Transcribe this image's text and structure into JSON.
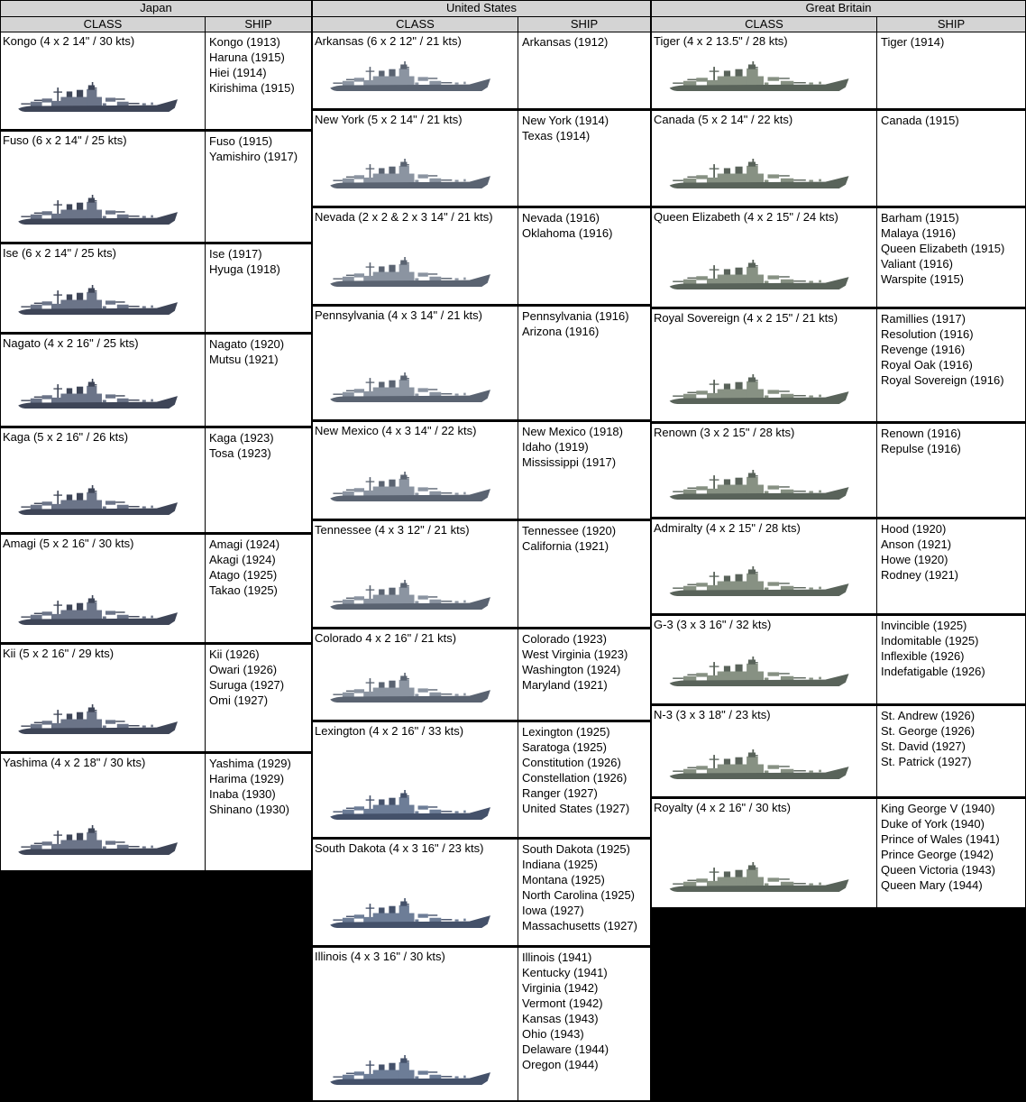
{
  "palettes": {
    "japan": {
      "dark": "#3e4557",
      "mid": "#6b7488"
    },
    "us_early": {
      "dark": "#5a6371",
      "mid": "#8b94a1"
    },
    "us_late": {
      "dark": "#44516a",
      "mid": "#6d7d97"
    },
    "gb": {
      "dark": "#59635a",
      "mid": "#879183"
    }
  },
  "colors": {
    "page_background": "#000000",
    "table_background": "#ffffff",
    "header_background": "#d4d4d4",
    "border": "#000000"
  },
  "tables": [
    {
      "country": "Japan",
      "class_header": "CLASS",
      "ship_header": "SHIP",
      "rows": [
        {
          "class_label": "Kongo (4 x 2 14\" / 30 kts)",
          "palette": "japan",
          "ships": [
            "Kongo (1913)",
            "Haruna (1915)",
            "Hiei (1914)",
            "Kirishima (1915)"
          ]
        },
        {
          "class_label": "Fuso (6 x 2 14\" / 25 kts)",
          "palette": "japan",
          "ships": [
            "Fuso (1915)",
            "Yamishiro (1917)"
          ]
        },
        {
          "class_label": "Ise (6 x 2 14\" / 25 kts)",
          "palette": "japan",
          "ships": [
            "Ise (1917)",
            "Hyuga (1918)"
          ]
        },
        {
          "class_label": "Nagato (4 x 2 16\" / 25 kts)",
          "palette": "japan",
          "ships": [
            "Nagato (1920)",
            "Mutsu (1921)"
          ]
        },
        {
          "class_label": "Kaga (5 x 2 16\" / 26 kts)",
          "palette": "japan",
          "ships": [
            "Kaga (1923)",
            "Tosa (1923)"
          ]
        },
        {
          "class_label": "Amagi (5 x 2 16\" / 30 kts)",
          "palette": "japan",
          "ships": [
            "Amagi (1924)",
            "Akagi (1924)",
            "Atago (1925)",
            "Takao (1925)"
          ]
        },
        {
          "class_label": "Kii (5 x 2 16\" / 29 kts)",
          "palette": "japan",
          "ships": [
            "Kii (1926)",
            "Owari (1926)",
            "Suruga (1927)",
            "Omi (1927)"
          ]
        },
        {
          "class_label": "Yashima (4 x 2 18\" / 30 kts)",
          "palette": "japan",
          "ships": [
            "Yashima (1929)",
            "Harima (1929)",
            "Inaba (1930)",
            "Shinano (1930)"
          ]
        }
      ]
    },
    {
      "country": "United States",
      "class_header": "CLASS",
      "ship_header": "SHIP",
      "rows": [
        {
          "class_label": "Arkansas (6 x 2 12\" / 21 kts)",
          "palette": "us_early",
          "ships": [
            "Arkansas (1912)"
          ]
        },
        {
          "class_label": "New York (5 x 2 14\" / 21 kts)",
          "palette": "us_early",
          "ships": [
            "New York (1914)",
            "Texas (1914)"
          ]
        },
        {
          "class_label": "Nevada (2 x 2 & 2 x 3 14\" / 21 kts)",
          "palette": "us_early",
          "ships": [
            "Nevada (1916)",
            "Oklahoma (1916)"
          ]
        },
        {
          "class_label": "Pennsylvania (4 x 3 14\" / 21 kts)",
          "palette": "us_early",
          "ships": [
            "Pennsylvania (1916)",
            "Arizona (1916)"
          ]
        },
        {
          "class_label": "New Mexico (4 x 3 14\" / 22 kts)",
          "palette": "us_early",
          "ships": [
            "New Mexico (1918)",
            "Idaho (1919)",
            "Mississippi (1917)"
          ]
        },
        {
          "class_label": "Tennessee (4 x 3 12\" / 21 kts)",
          "palette": "us_early",
          "ships": [
            "Tennessee (1920)",
            "California (1921)"
          ]
        },
        {
          "class_label": "Colorado 4 x 2 16\" / 21 kts)",
          "palette": "us_early",
          "ships": [
            "Colorado (1923)",
            "West Virginia (1923)",
            "Washington (1924)",
            "Maryland (1921)"
          ]
        },
        {
          "class_label": "Lexington (4 x 2 16\" / 33 kts)",
          "palette": "us_late",
          "ships": [
            "Lexington (1925)",
            "Saratoga (1925)",
            "Constitution (1926)",
            "Constellation (1926)",
            "Ranger (1927)",
            "United States (1927)"
          ]
        },
        {
          "class_label": "South Dakota (4 x 3 16\" / 23 kts)",
          "palette": "us_late",
          "ships": [
            "South Dakota (1925)",
            "Indiana (1925)",
            "Montana (1925)",
            "North Carolina (1925)",
            "Iowa (1927)",
            "Massachusetts (1927)"
          ]
        },
        {
          "class_label": "Illinois (4 x 3 16\" / 30 kts)",
          "palette": "us_late",
          "ships": [
            "Illinois (1941)",
            "Kentucky (1941)",
            "Virginia (1942)",
            "Vermont (1942)",
            "Kansas (1943)",
            "Ohio (1943)",
            "Delaware (1944)",
            "Oregon (1944)"
          ]
        }
      ]
    },
    {
      "country": "Great Britain",
      "class_header": "CLASS",
      "ship_header": "SHIP",
      "rows": [
        {
          "class_label": "Tiger (4 x 2 13.5\" / 28 kts)",
          "palette": "gb",
          "ships": [
            "Tiger (1914)"
          ]
        },
        {
          "class_label": "Canada (5 x 2 14\" / 22 kts)",
          "palette": "gb",
          "ships": [
            "Canada (1915)"
          ]
        },
        {
          "class_label": "Queen Elizabeth (4 x 2 15\" / 24 kts)",
          "palette": "gb",
          "ships": [
            "Barham (1915)",
            "Malaya (1916)",
            "Queen Elizabeth (1915)",
            "Valiant (1916)",
            "Warspite (1915)"
          ]
        },
        {
          "class_label": "Royal Sovereign (4 x 2 15\" / 21 kts)",
          "palette": "gb",
          "ships": [
            "Ramillies (1917)",
            "Resolution (1916)",
            "Revenge (1916)",
            "Royal Oak (1916)",
            "Royal Sovereign (1916)"
          ]
        },
        {
          "class_label": "Renown (3 x 2 15\" / 28 kts)",
          "palette": "gb",
          "ships": [
            "Renown (1916)",
            "Repulse (1916)"
          ]
        },
        {
          "class_label": "Admiralty (4 x 2 15\" / 28 kts)",
          "palette": "gb",
          "ships": [
            "Hood (1920)",
            "Anson (1921)",
            "Howe (1920)",
            "Rodney (1921)"
          ]
        },
        {
          "class_label": "G-3 (3 x 3 16\" / 32 kts)",
          "palette": "gb",
          "ships": [
            "Invincible (1925)",
            "Indomitable (1925)",
            "Inflexible (1926)",
            "Indefatigable (1926)"
          ]
        },
        {
          "class_label": "N-3 (3 x 3 18\" / 23 kts)",
          "palette": "gb",
          "ships": [
            "St. Andrew (1926)",
            "St. George (1926)",
            "St. David (1927)",
            "St. Patrick (1927)"
          ]
        },
        {
          "class_label": "Royalty (4 x 2 16\" / 30 kts)",
          "palette": "gb",
          "ships": [
            "King George V (1940)",
            "Duke of York (1940)",
            "Prince of Wales (1941)",
            "Prince George (1942)",
            "Queen Victoria (1943)",
            "Queen Mary (1944)"
          ]
        }
      ]
    }
  ]
}
